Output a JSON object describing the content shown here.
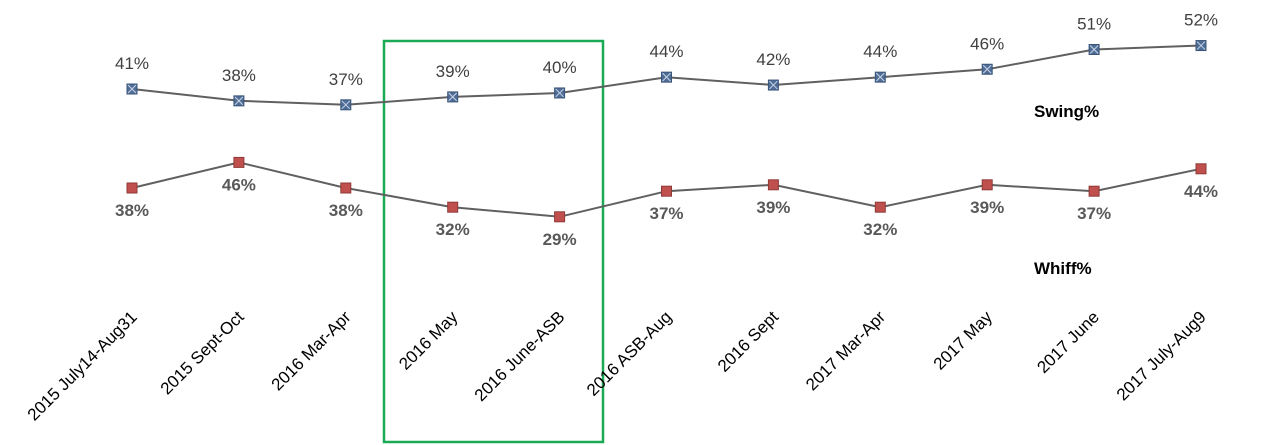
{
  "chart_data": {
    "type": "line",
    "categories": [
      "2015 July14-Aug31",
      "2015 Sept-Oct",
      "2016 Mar-Apr",
      "2016 May",
      "2016 June-ASB",
      "2016 ASB-Aug",
      "2016 Sept",
      "2017 Mar-Apr",
      "2017 May",
      "2017 June",
      "2017 July-Aug9"
    ],
    "series": [
      {
        "name": "Swing%",
        "values": [
          41,
          38,
          37,
          39,
          40,
          44,
          42,
          44,
          46,
          51,
          52
        ],
        "labels": [
          "41%",
          "38%",
          "37%",
          "39%",
          "40%",
          "44%",
          "42%",
          "44%",
          "46%",
          "51%",
          "52%"
        ],
        "marker": "square-x",
        "marker_color": "#4f6d96",
        "line_color": "#606060"
      },
      {
        "name": "Whiff%",
        "values": [
          38,
          46,
          38,
          32,
          29,
          37,
          39,
          32,
          39,
          37,
          44
        ],
        "labels": [
          "38%",
          "46%",
          "38%",
          "32%",
          "29%",
          "37%",
          "39%",
          "32%",
          "39%",
          "37%",
          "44%"
        ],
        "marker": "square",
        "marker_color": "#c0504d",
        "line_color": "#606060"
      }
    ],
    "highlight": {
      "categories": [
        "2016 May",
        "2016 June-ASB"
      ],
      "color": "#1aaa55"
    },
    "xlabel": "",
    "ylabel": "",
    "grid": false,
    "legend": "none"
  }
}
